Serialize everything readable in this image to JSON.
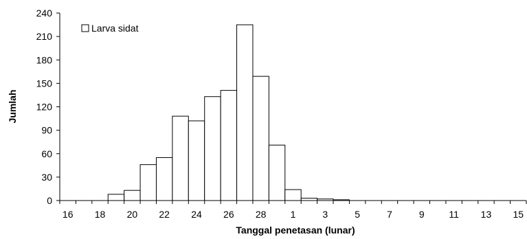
{
  "chart_data": {
    "type": "bar",
    "categories": [
      "16",
      "17",
      "18",
      "19",
      "20",
      "21",
      "22",
      "23",
      "24",
      "25",
      "26",
      "27",
      "28",
      "29",
      "1",
      "2",
      "3",
      "4",
      "5",
      "6",
      "7",
      "8",
      "9",
      "10",
      "11",
      "12",
      "13",
      "14",
      "15"
    ],
    "series": [
      {
        "name": "Larva sidat",
        "values": [
          0,
          0,
          0,
          8,
          13,
          46,
          55,
          108,
          102,
          133,
          141,
          225,
          159,
          71,
          14,
          3,
          2,
          1,
          0,
          0,
          0,
          0,
          0,
          0,
          0,
          0,
          0,
          0,
          0
        ]
      }
    ],
    "xlabel": "Tanggal penetasan  (lunar)",
    "ylabel": "Jumlah",
    "ylim": [
      0,
      240
    ],
    "yticks": [
      0,
      30,
      60,
      90,
      120,
      150,
      180,
      210,
      240
    ],
    "xtick_labels": [
      "16",
      "18",
      "20",
      "22",
      "24",
      "26",
      "28",
      "1",
      "3",
      "5",
      "7",
      "9",
      "11",
      "13",
      "15"
    ],
    "grid": false,
    "legend_position": "top-left",
    "bar_fill": "#ffffff",
    "bar_stroke": "#000000"
  }
}
